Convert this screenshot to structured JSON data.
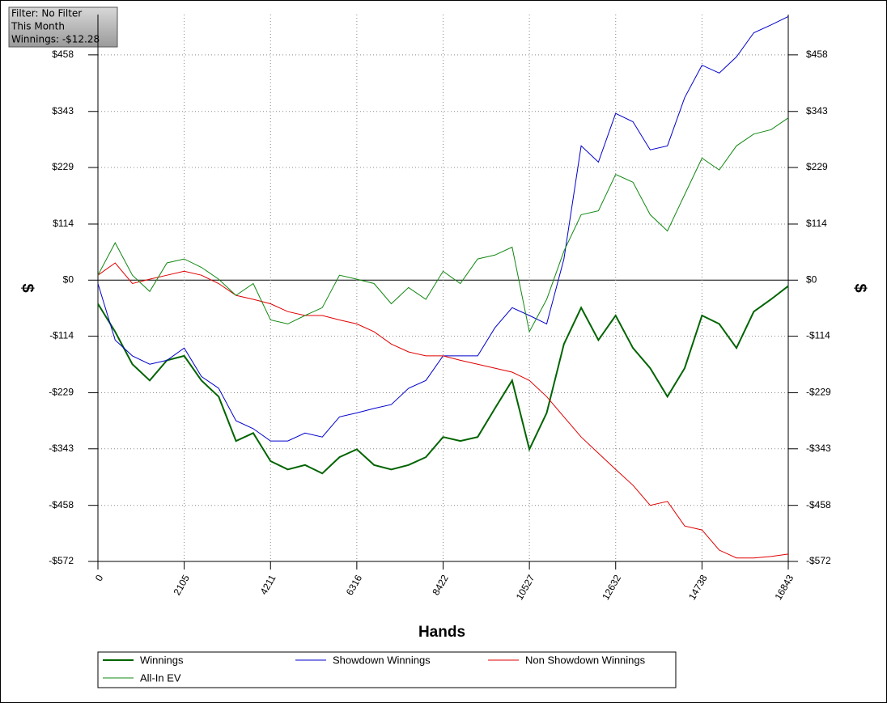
{
  "chart_data": {
    "type": "line",
    "annotations": [
      "Filter: No Filter",
      "This Month",
      "Winnings: -$12.28"
    ],
    "xlabel": "Hands",
    "ylabel": "$",
    "x": [
      0,
      421,
      842,
      1263,
      1684,
      2105,
      2526,
      2947,
      3368,
      3789,
      4211,
      4632,
      5053,
      5474,
      5895,
      6316,
      6737,
      7158,
      7579,
      8000,
      8422,
      8843,
      9264,
      9685,
      10106,
      10527,
      10948,
      11369,
      11790,
      12211,
      12632,
      13053,
      13474,
      13895,
      14316,
      14738,
      15159,
      15580,
      16001,
      16422,
      16843
    ],
    "xlim": [
      0,
      16843
    ],
    "xticks": [
      0,
      2105,
      4211,
      6316,
      8422,
      10527,
      12632,
      14738,
      16843
    ],
    "ylim": [
      -572,
      540
    ],
    "yticks": [
      {
        "value": 458,
        "label": "$458"
      },
      {
        "value": 343,
        "label": "$343"
      },
      {
        "value": 229,
        "label": "$229"
      },
      {
        "value": 114,
        "label": "$114"
      },
      {
        "value": 0,
        "label": "$0"
      },
      {
        "value": -114,
        "label": "-$114"
      },
      {
        "value": -229,
        "label": "-$229"
      },
      {
        "value": -343,
        "label": "-$343"
      },
      {
        "value": -458,
        "label": "-$458"
      },
      {
        "value": -572,
        "label": "-$572"
      }
    ],
    "grid": true,
    "series": [
      {
        "name": "Winnings",
        "color": "#006400",
        "width": 2,
        "values": [
          -48,
          -105,
          -171,
          -204,
          -163,
          -154,
          -204,
          -237,
          -327,
          -311,
          -368,
          -385,
          -376,
          -393,
          -360,
          -344,
          -376,
          -385,
          -376,
          -360,
          -319,
          -327,
          -319,
          -261,
          -204,
          -344,
          -270,
          -130,
          -56,
          -122,
          -72,
          -138,
          -179,
          -237,
          -179,
          -72,
          -89,
          -138,
          -64,
          -39,
          -12
        ]
      },
      {
        "name": "Showdown Winnings",
        "color": "#0000cc",
        "width": 1,
        "values": [
          -7,
          -122,
          -154,
          -171,
          -163,
          -138,
          -196,
          -220,
          -286,
          -302,
          -327,
          -327,
          -311,
          -319,
          -278,
          -270,
          -261,
          -253,
          -220,
          -204,
          -154,
          -154,
          -154,
          -97,
          -56,
          -72,
          -89,
          43,
          273,
          240,
          339,
          322,
          265,
          273,
          371,
          437,
          421,
          454,
          503,
          519,
          536
        ]
      },
      {
        "name": "Non Showdown Winnings",
        "color": "#e00000",
        "width": 1,
        "values": [
          10,
          35,
          -7,
          2,
          10,
          18,
          10,
          -7,
          -31,
          -39,
          -48,
          -64,
          -72,
          -72,
          -81,
          -89,
          -105,
          -130,
          -146,
          -154,
          -154,
          -163,
          -171,
          -179,
          -187,
          -204,
          -237,
          -278,
          -319,
          -352,
          -385,
          -417,
          -458,
          -450,
          -500,
          -508,
          -549,
          -565,
          -565,
          -562,
          -557
        ]
      },
      {
        "name": "All-In EV",
        "color": "#118811",
        "width": 1,
        "values": [
          10,
          76,
          10,
          -23,
          35,
          43,
          26,
          2,
          -31,
          -7,
          -81,
          -89,
          -72,
          -56,
          10,
          2,
          -7,
          -48,
          -15,
          -39,
          18,
          -7,
          43,
          51,
          67,
          -105,
          -39,
          59,
          133,
          141,
          215,
          199,
          133,
          100,
          174,
          248,
          224,
          273,
          297,
          306,
          330
        ]
      }
    ]
  }
}
